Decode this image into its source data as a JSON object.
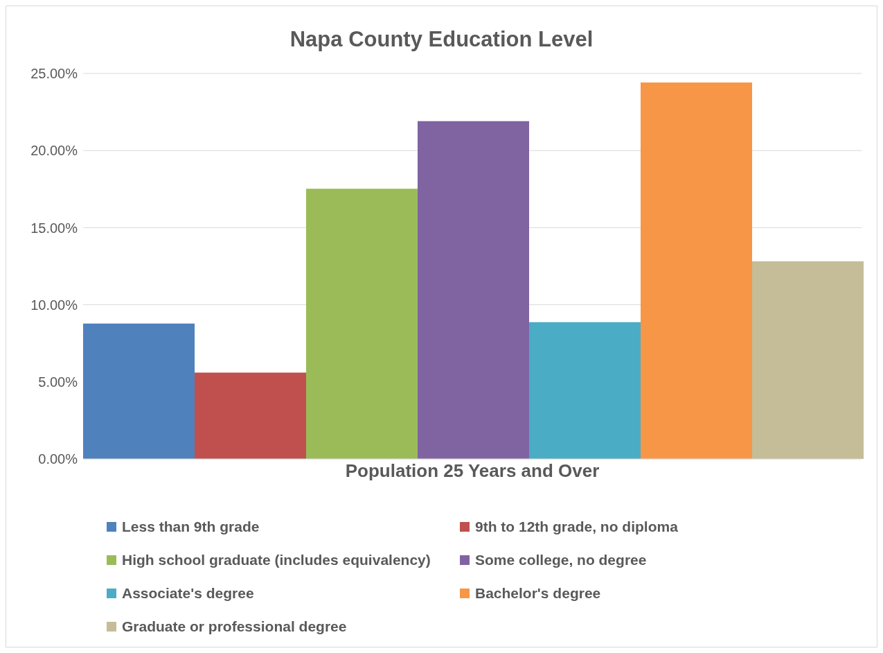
{
  "chart_data": {
    "type": "bar",
    "title": "Napa County Education Level",
    "categories": [
      "Population 25 Years and Over"
    ],
    "series": [
      {
        "name": "Less than 9th grade",
        "color": "#4f81bd",
        "values": [
          8.78
        ]
      },
      {
        "name": "9th to 12th grade, no diploma",
        "color": "#c0504d",
        "values": [
          5.6
        ]
      },
      {
        "name": "High school graduate (includes equivalency)",
        "color": "#9bbb59",
        "values": [
          17.52
        ]
      },
      {
        "name": "Some college, no degree",
        "color": "#8064a2",
        "values": [
          21.91
        ]
      },
      {
        "name": "Associate's degree",
        "color": "#4bacc6",
        "values": [
          8.87
        ]
      },
      {
        "name": "Bachelor's degree",
        "color": "#f79646",
        "values": [
          24.42
        ]
      },
      {
        "name": "Graduate or professional degree",
        "color": "#c4bd97",
        "values": [
          12.81
        ]
      }
    ],
    "ylim": [
      0,
      25
    ],
    "yticks": [
      {
        "value": 0,
        "label": "0.00%"
      },
      {
        "value": 5,
        "label": "5.00%"
      },
      {
        "value": 10,
        "label": "10.00%"
      },
      {
        "value": 15,
        "label": "15.00%"
      },
      {
        "value": 20,
        "label": "20.00%"
      },
      {
        "value": 25,
        "label": "25.00%"
      }
    ],
    "grid": "y",
    "legend": "bottom"
  }
}
